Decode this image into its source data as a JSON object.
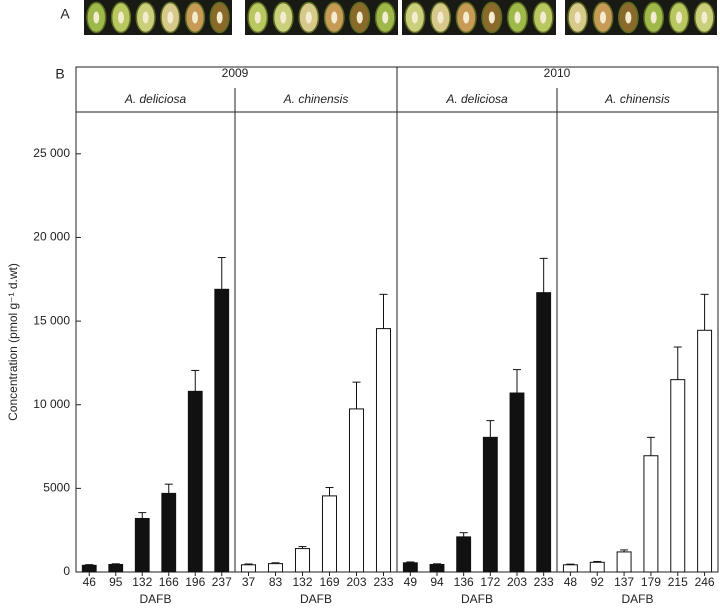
{
  "figure": {
    "panel_a": "A",
    "panel_b": "B",
    "ylabel": "Concentration (pmol g⁻¹ d.wt)"
  },
  "chart_data": [
    {
      "type": "bar",
      "year": "2009",
      "title": "A. deliciosa",
      "xlabel": "DAFB",
      "color": "#111111",
      "categories": [
        "46",
        "95",
        "132",
        "166",
        "196",
        "237"
      ],
      "values": [
        400,
        450,
        3200,
        4700,
        10800,
        16900
      ],
      "errors": [
        40,
        40,
        350,
        550,
        1250,
        1900
      ],
      "ylim": [
        0,
        27500
      ],
      "yticks": [
        0,
        5000,
        {
          "value": 10000,
          "label": "10 000"
        },
        {
          "value": 15000,
          "label": "15 000"
        },
        {
          "value": 20000,
          "label": "20 000"
        },
        {
          "value": 25000,
          "label": "25 000"
        }
      ]
    },
    {
      "type": "bar",
      "title": "A. chinensis",
      "xlabel": "DAFB",
      "color": "#ffffff",
      "categories": [
        "37",
        "83",
        "132",
        "169",
        "203",
        "233"
      ],
      "values": [
        430,
        500,
        1400,
        4550,
        9750,
        14550
      ],
      "errors": [
        50,
        50,
        120,
        500,
        1600,
        2050
      ]
    },
    {
      "type": "bar",
      "year": "2010",
      "title": "A. deliciosa",
      "xlabel": "DAFB",
      "color": "#111111",
      "categories": [
        "49",
        "94",
        "136",
        "172",
        "203",
        "233"
      ],
      "values": [
        550,
        450,
        2100,
        8050,
        10700,
        16700
      ],
      "errors": [
        50,
        40,
        250,
        1000,
        1400,
        2050
      ]
    },
    {
      "type": "bar",
      "title": "A. chinensis",
      "xlabel": "DAFB",
      "color": "#ffffff",
      "categories": [
        "48",
        "92",
        "137",
        "179",
        "215",
        "246"
      ],
      "values": [
        430,
        580,
        1200,
        6950,
        11500,
        14450
      ],
      "errors": [
        40,
        50,
        120,
        1100,
        1950,
        2150
      ]
    }
  ]
}
